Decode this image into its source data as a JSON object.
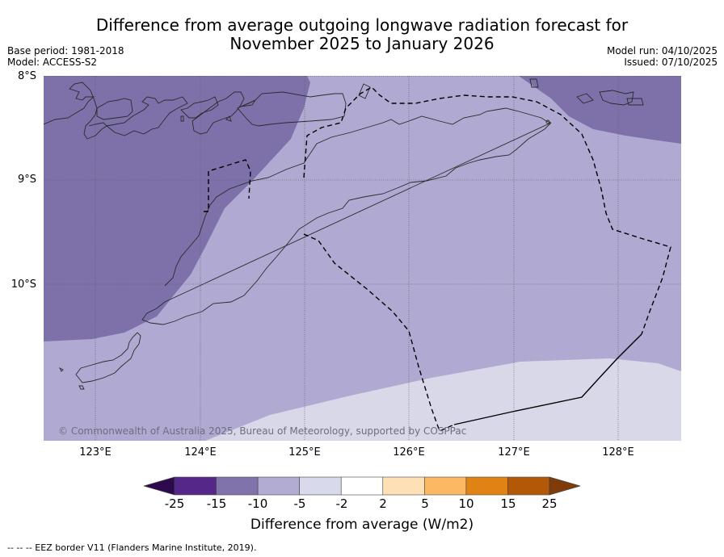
{
  "header": {
    "title_line1": "Difference from average outgoing longwave radiation forecast for",
    "title_line2": "November 2025 to January 2026",
    "base_period": "Base period: 1981-2018",
    "model": "Model: ACCESS-S2",
    "model_run": "Model run: 04/10/2025",
    "issued": "Issued: 07/10/2025"
  },
  "map": {
    "lat_labels": [
      "8°S",
      "9°S",
      "10°S"
    ],
    "lon_labels": [
      "123°E",
      "124°E",
      "125°E",
      "126°E",
      "127°E",
      "128°E"
    ],
    "extent": {
      "lon_min": 122.5,
      "lon_max": 128.6,
      "lat_min": -11.5,
      "lat_max": -8.0
    },
    "copyright": "© Commonwealth of Australia 2025, Bureau of Meteorology, supported by COSPPac",
    "region_fills": {
      "minus15_to_minus10": "#7e71aa",
      "minus10_to_minus5": "#b0a9d1",
      "minus5_to_minus2": "#d8d8e9"
    },
    "coastline_color": "#2a2a2a",
    "eez_color": "#000000"
  },
  "colorbar": {
    "label": "Difference from average (W/m2)",
    "ticks": [
      "-25",
      "-15",
      "-10",
      "-5",
      "-2",
      "2",
      "5",
      "10",
      "15",
      "25"
    ],
    "under_color": "#2d0a4e",
    "over_color": "#7f3b08",
    "bins": [
      {
        "from": -25,
        "to": -15,
        "color": "#542788"
      },
      {
        "from": -15,
        "to": -10,
        "color": "#8073ac"
      },
      {
        "from": -10,
        "to": -5,
        "color": "#b2abd2"
      },
      {
        "from": -5,
        "to": -2,
        "color": "#d8daeb"
      },
      {
        "from": -2,
        "to": 2,
        "color": "#ffffff"
      },
      {
        "from": 2,
        "to": 5,
        "color": "#fee0b6"
      },
      {
        "from": 5,
        "to": 10,
        "color": "#fdb863"
      },
      {
        "from": 10,
        "to": 15,
        "color": "#e08214"
      },
      {
        "from": 15,
        "to": 25,
        "color": "#b35806"
      }
    ]
  },
  "footer": {
    "eez_note": "--  --  -- EEZ border V11 (Flanders Marine Institute, 2019)."
  }
}
